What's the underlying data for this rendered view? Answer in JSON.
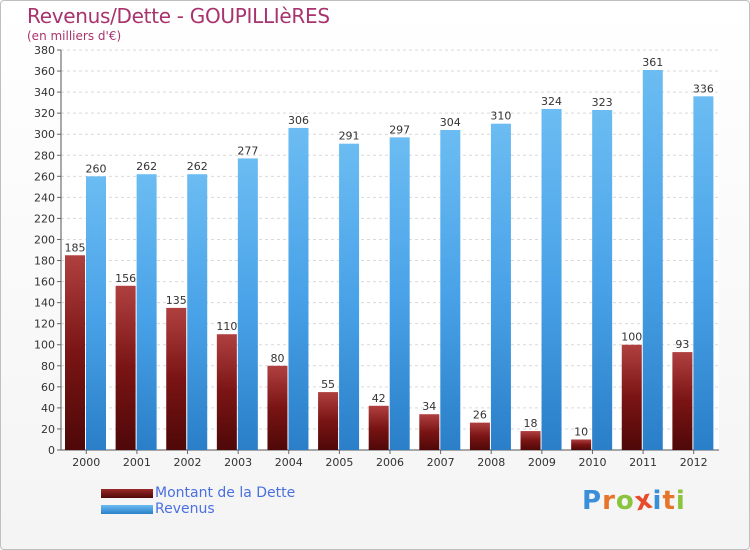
{
  "title": "Revenus/Dette - GOUPILLIèRES",
  "subtitle": "(en milliers d'€)",
  "chart_data": {
    "type": "bar",
    "categories": [
      "2000",
      "2001",
      "2002",
      "2003",
      "2004",
      "2005",
      "2006",
      "2007",
      "2008",
      "2009",
      "2010",
      "2011",
      "2012"
    ],
    "series": [
      {
        "name": "Montant de la Dette",
        "color": "#7a1313",
        "values": [
          185,
          156,
          135,
          110,
          80,
          55,
          42,
          34,
          26,
          18,
          10,
          100,
          93
        ]
      },
      {
        "name": "Revenus",
        "color": "#4aa3e8",
        "values": [
          260,
          262,
          262,
          277,
          306,
          291,
          297,
          304,
          310,
          324,
          323,
          361,
          336
        ]
      }
    ],
    "ylim": [
      0,
      380
    ],
    "ytick_step": 20,
    "grid": true,
    "legend": "bottom-left"
  },
  "logo": {
    "letters": [
      "P",
      "r",
      "o",
      "x",
      "i",
      "t",
      "i"
    ],
    "colors": [
      "#3a8fd8",
      "#e8742a",
      "#8bc43f",
      "#e84a2a",
      "#3a8fd8",
      "#e8742a",
      "#8bc43f"
    ]
  }
}
